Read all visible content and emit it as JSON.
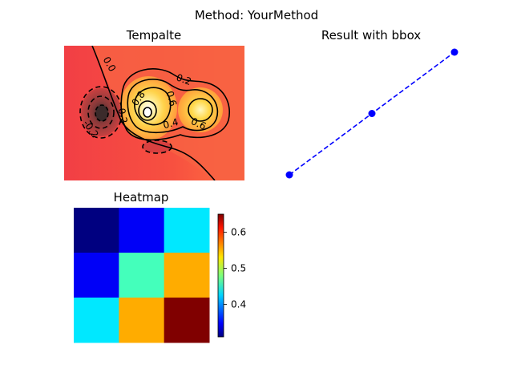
{
  "figure": {
    "suptitle": "Method: YourMethod"
  },
  "colors": {
    "contour_low": "#f24545",
    "contour_high": "#ff7a40",
    "line": "#0000ff",
    "background": "#ffffff"
  },
  "chart_data": [
    {
      "type": "contour",
      "title": "Tempalte",
      "contour_labels": [
        "0.0",
        "0.2",
        "0.8",
        "0.6",
        "0.4",
        "0.6",
        "-0.2",
        "0.2"
      ],
      "axes_visible": false
    },
    {
      "type": "line",
      "title": "Result with bbox",
      "x": [
        0,
        1,
        2
      ],
      "y": [
        0,
        1,
        2
      ],
      "line_style": "dashed",
      "marker": "circle",
      "color": "#0000ff",
      "axes_visible": false
    },
    {
      "type": "heatmap",
      "title": "Heatmap",
      "values": [
        [
          0.31,
          0.35,
          0.43
        ],
        [
          0.35,
          0.46,
          0.55
        ],
        [
          0.43,
          0.55,
          0.65
        ]
      ],
      "colormap": "jet",
      "vmin": 0.31,
      "vmax": 0.65,
      "colorbar_ticks": [
        0.4,
        0.5,
        0.6
      ],
      "colorbar_tick_labels": [
        "0.4",
        "0.5",
        "0.6"
      ],
      "axes_visible": false
    }
  ]
}
